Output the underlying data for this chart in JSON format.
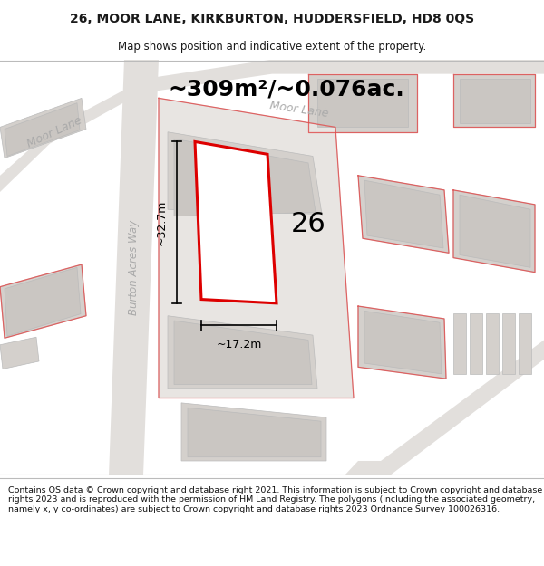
{
  "title_line1": "26, MOOR LANE, KIRKBURTON, HUDDERSFIELD, HD8 0QS",
  "title_line2": "Map shows position and indicative extent of the property.",
  "footer_text": "Contains OS data © Crown copyright and database right 2021. This information is subject to Crown copyright and database rights 2023 and is reproduced with the permission of HM Land Registry. The polygons (including the associated geometry, namely x, y co-ordinates) are subject to Crown copyright and database rights 2023 Ordnance Survey 100026316.",
  "area_label": "~309m²/~0.076ac.",
  "width_label": "~17.2m",
  "height_label": "~32.7m",
  "number_label": "26",
  "map_bg": "#f0eeec",
  "road_color": "#e2dfdc",
  "building_outer": "#d4d0cc",
  "building_inner": "#cac6c2",
  "plot_red": "#e8000000",
  "text_gray": "#aaaaaa",
  "title_color": "#1a1a1a"
}
